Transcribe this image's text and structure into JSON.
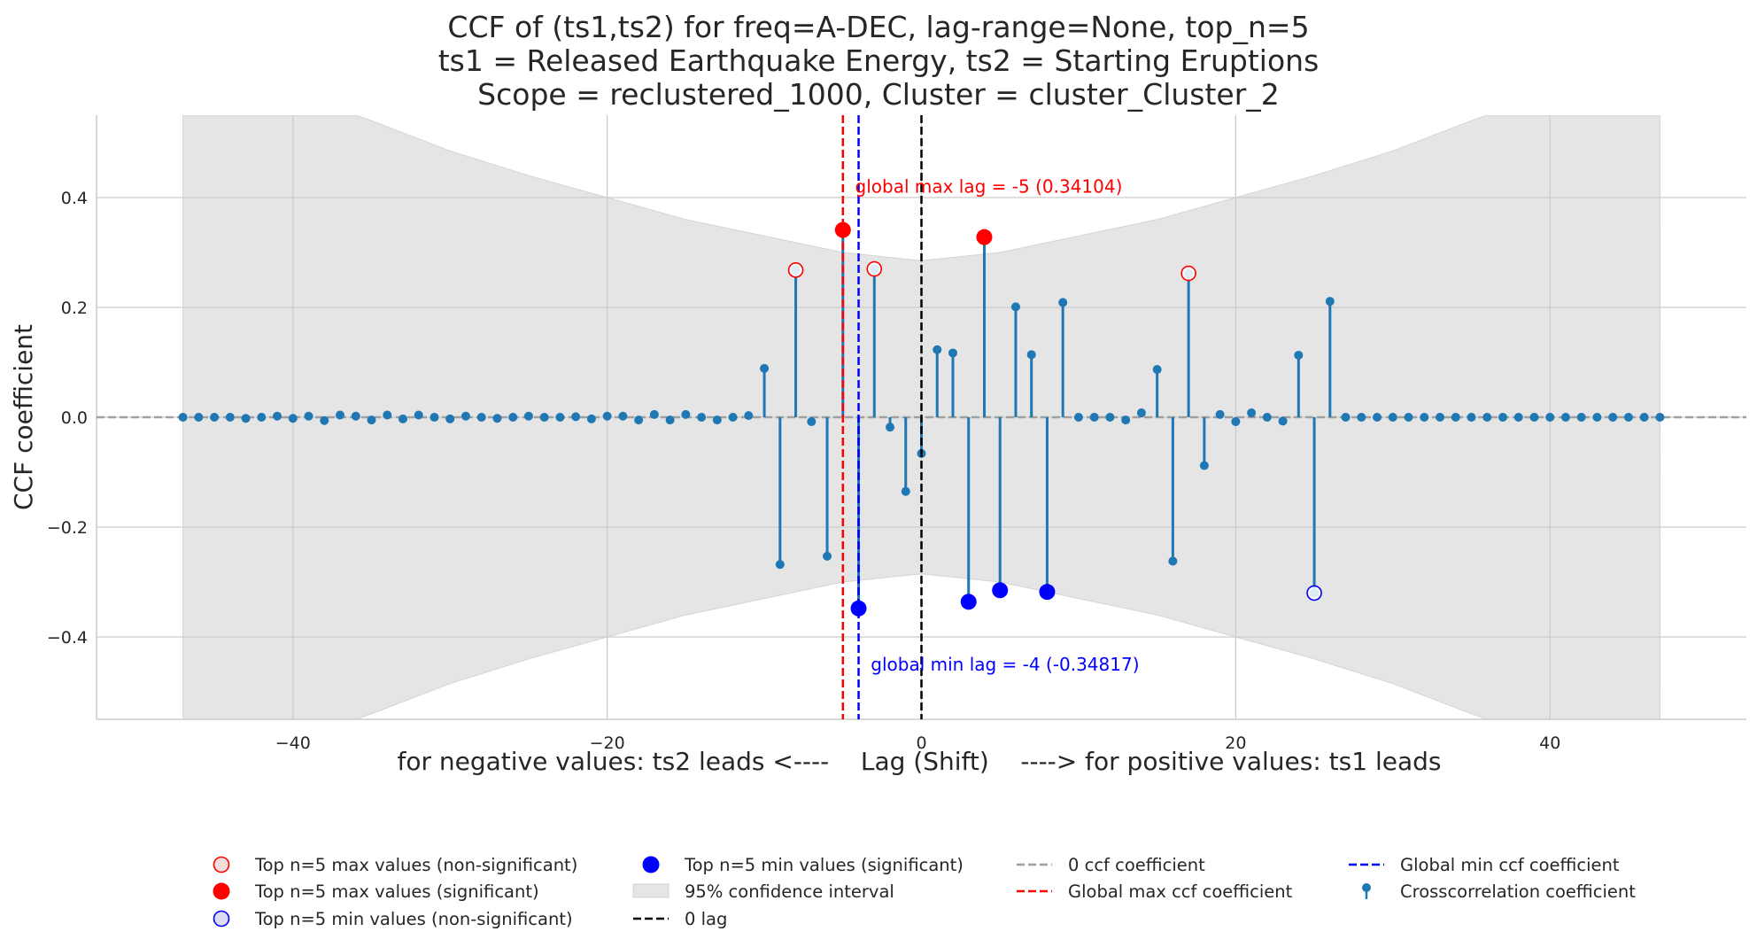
{
  "chart_data": {
    "type": "stem",
    "title_lines": [
      "CCF of (ts1,ts2) for freq=A-DEC, lag-range=None, top_n=5",
      "ts1 = Released Earthquake Energy, ts2 = Starting Eruptions",
      "Scope = reclustered_1000, Cluster = cluster_Cluster_2"
    ],
    "xlabel": "for negative values: ts2 leads <----    Lag (Shift)    ----> for positive values: ts1 leads",
    "ylabel": "CCF coefficient",
    "xlim": [
      -52.5,
      52.5
    ],
    "ylim": [
      -0.55,
      0.55
    ],
    "xticks": [
      -40,
      -20,
      0,
      20,
      40
    ],
    "xtick_labels": [
      "−40",
      "−20",
      "0",
      "20",
      "40"
    ],
    "yticks": [
      -0.4,
      -0.2,
      0.0,
      0.2,
      0.4
    ],
    "ytick_labels": [
      "−0.4",
      "−0.2",
      "0.0",
      "0.2",
      "0.4"
    ],
    "grid": true,
    "series": [
      {
        "name": "Crosscorrelation coefficient",
        "color": "#1f77b4",
        "x": [
          -47,
          -46,
          -45,
          -44,
          -43,
          -42,
          -41,
          -40,
          -39,
          -38,
          -37,
          -36,
          -35,
          -34,
          -33,
          -32,
          -31,
          -30,
          -29,
          -28,
          -27,
          -26,
          -25,
          -24,
          -23,
          -22,
          -21,
          -20,
          -19,
          -18,
          -17,
          -16,
          -15,
          -14,
          -13,
          -12,
          -11,
          -10,
          -9,
          -8,
          -7,
          -6,
          -5,
          -4,
          -3,
          -2,
          -1,
          0,
          1,
          2,
          3,
          4,
          5,
          6,
          7,
          8,
          9,
          10,
          11,
          12,
          13,
          14,
          15,
          16,
          17,
          18,
          19,
          20,
          21,
          22,
          23,
          24,
          25,
          26,
          27,
          28,
          29,
          30,
          31,
          32,
          33,
          34,
          35,
          36,
          37,
          38,
          39,
          40,
          41,
          42,
          43,
          44,
          45,
          46,
          47
        ],
        "y": [
          0.0,
          0.0,
          0.0,
          0.0,
          -0.002,
          0.0,
          0.002,
          -0.002,
          0.002,
          -0.006,
          0.004,
          0.002,
          -0.005,
          0.004,
          -0.003,
          0.004,
          0.0,
          -0.003,
          0.002,
          0.0,
          -0.002,
          0.0,
          0.002,
          0.0,
          0.0,
          0.001,
          -0.003,
          0.002,
          0.002,
          -0.005,
          0.005,
          -0.005,
          0.005,
          0.0,
          -0.005,
          0.0,
          0.003,
          0.089,
          -0.268,
          0.268,
          -0.008,
          -0.253,
          0.341,
          -0.348,
          0.27,
          -0.018,
          -0.135,
          -0.066,
          0.123,
          0.117,
          -0.336,
          0.328,
          -0.315,
          0.201,
          0.114,
          -0.318,
          0.209,
          0.0,
          0.0,
          0.0,
          -0.005,
          0.008,
          0.087,
          -0.262,
          0.262,
          -0.088,
          0.005,
          -0.008,
          0.008,
          0.0,
          -0.007,
          0.113,
          -0.32,
          0.211,
          0.0,
          0.0,
          0.0,
          0.0,
          0.0,
          0.0,
          0.0,
          0.0,
          0.0,
          0.0,
          0.0,
          0.0,
          0.0,
          0.0,
          0.0,
          0.0,
          0.0,
          0.0,
          0.0,
          0.0,
          0.0
        ]
      }
    ],
    "confidence_interval": {
      "name": "95% confidence interval",
      "color": "#e5e5e5",
      "x_range": [
        -47,
        47
      ],
      "upper": [
        [
          -47,
          0.55
        ],
        [
          -36,
          0.55
        ],
        [
          -35,
          0.54
        ],
        [
          -30,
          0.485
        ],
        [
          -25,
          0.44
        ],
        [
          -20,
          0.4
        ],
        [
          -15,
          0.36
        ],
        [
          -10,
          0.33
        ],
        [
          -5,
          0.3
        ],
        [
          0,
          0.285
        ],
        [
          5,
          0.3
        ],
        [
          10,
          0.33
        ],
        [
          15,
          0.36
        ],
        [
          20,
          0.4
        ],
        [
          25,
          0.44
        ],
        [
          30,
          0.485
        ],
        [
          35,
          0.54
        ],
        [
          36,
          0.55
        ],
        [
          47,
          0.55
        ]
      ]
    },
    "zero_ccf_line": {
      "name": "0 ccf coefficient",
      "y": 0.0,
      "color": "#a0a0a0"
    },
    "zero_lag_line": {
      "name": "0 lag",
      "x": 0,
      "color": "#000000"
    },
    "global_max_line": {
      "name": "Global max ccf coefficient",
      "x": -5,
      "color": "#ff0000"
    },
    "global_min_line": {
      "name": "Global min ccf coefficient",
      "x": -4,
      "color": "#0000ff"
    },
    "annotations": [
      {
        "text": "global max lag = -5 (0.34104)",
        "x": -4,
        "y": 0.42,
        "color": "#ff0000"
      },
      {
        "text": "global min lag = -4 (-0.34817)",
        "x": -3,
        "y": -0.45,
        "color": "#0000ff"
      }
    ],
    "top_max_significant": {
      "name": "Top n=5 max values (significant)",
      "color": "#ff0000",
      "points": [
        [
          -5,
          0.341
        ],
        [
          4,
          0.328
        ]
      ]
    },
    "top_max_nonsignificant": {
      "name": "Top n=5 max values (non-significant)",
      "color": "#ff0000",
      "points": [
        [
          -8,
          0.268
        ],
        [
          -3,
          0.27
        ],
        [
          17,
          0.262
        ]
      ]
    },
    "top_min_significant": {
      "name": "Top n=5 min values (significant)",
      "color": "#0000ff",
      "points": [
        [
          -4,
          -0.348
        ],
        [
          3,
          -0.336
        ],
        [
          5,
          -0.315
        ],
        [
          8,
          -0.318
        ]
      ]
    },
    "top_min_nonsignificant": {
      "name": "Top n=5 min values (non-significant)",
      "color": "#0000ff",
      "points": [
        [
          25,
          -0.32
        ]
      ]
    },
    "legend": {
      "placement": "bottom",
      "columns": [
        [
          {
            "label": "Top n=5 max values (non-significant)",
            "kind": "ring-red"
          },
          {
            "label": "Top n=5 max values (significant)",
            "kind": "dot-red"
          },
          {
            "label": "Top n=5 min values (non-significant)",
            "kind": "ring-blue"
          }
        ],
        [
          {
            "label": "Top n=5 min values (significant)",
            "kind": "dot-blue"
          },
          {
            "label": "95% confidence interval",
            "kind": "patch"
          },
          {
            "label": "0 lag",
            "kind": "dash-black"
          }
        ],
        [
          {
            "label": "0 ccf coefficient",
            "kind": "dash-gray"
          },
          {
            "label": "Global max ccf coefficient",
            "kind": "dash-red"
          }
        ],
        [
          {
            "label": "Global min ccf coefficient",
            "kind": "dash-blue"
          },
          {
            "label": "Crosscorrelation coefficient",
            "kind": "stem"
          }
        ]
      ]
    }
  }
}
